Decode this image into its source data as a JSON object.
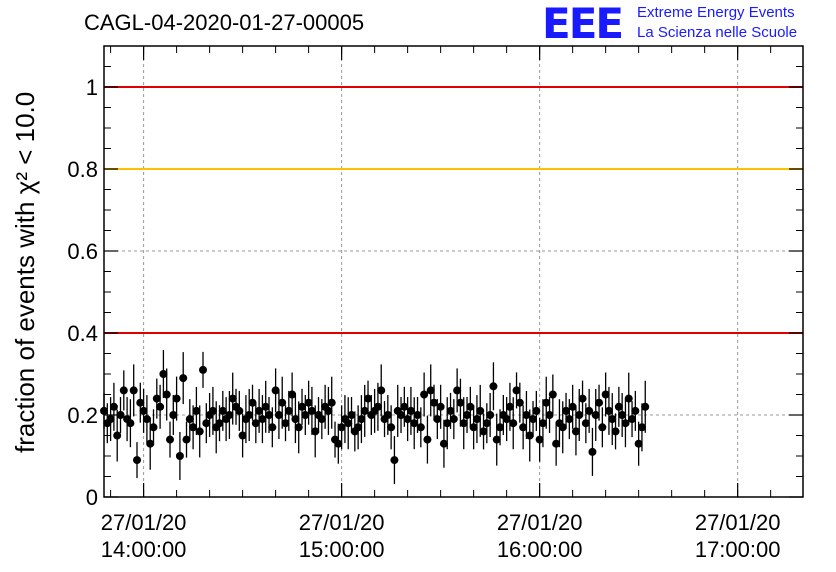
{
  "title": "CAGL-04-2020-01-27-00005",
  "logo": {
    "text": "EEE",
    "line1": "Extreme Energy Events",
    "line2": "La Scienza nelle Scuole",
    "color": "#1a1aff"
  },
  "chart_data": {
    "type": "scatter",
    "title": "CAGL-04-2020-01-27-00005",
    "ylabel": "fraction of events with",
    "ylabel_math": "χ² < 10.0",
    "xlabel": "",
    "ylim": [
      0,
      1.1
    ],
    "xlim_hours": [
      13.8,
      17.33
    ],
    "y_ticks": [
      {
        "value": 0,
        "label": "0"
      },
      {
        "value": 0.2,
        "label": "0.2"
      },
      {
        "value": 0.4,
        "label": "0.4"
      },
      {
        "value": 0.6,
        "label": "0.6"
      },
      {
        "value": 0.8,
        "label": "0.8"
      },
      {
        "value": 1.0,
        "label": "1"
      }
    ],
    "x_ticks": [
      {
        "hour": 14,
        "date": "27/01/20",
        "time": "14:00:00"
      },
      {
        "hour": 15,
        "date": "27/01/20",
        "time": "15:00:00"
      },
      {
        "hour": 16,
        "date": "27/01/20",
        "time": "16:00:00"
      },
      {
        "hour": 17,
        "date": "27/01/20",
        "time": "17:00:00"
      }
    ],
    "grid": true,
    "reference_lines": [
      {
        "y": 1.0,
        "color": "#e00000"
      },
      {
        "y": 0.8,
        "color": "#ffc000"
      },
      {
        "y": 0.4,
        "color": "#e00000"
      }
    ],
    "series": [
      {
        "color": "#000000",
        "x_start_hour": 13.8,
        "x_step_minutes": 1,
        "values": [
          0.21,
          0.18,
          0.19,
          0.22,
          0.15,
          0.2,
          0.26,
          0.19,
          0.18,
          0.26,
          0.09,
          0.23,
          0.21,
          0.19,
          0.13,
          0.17,
          0.24,
          0.22,
          0.3,
          0.25,
          0.14,
          0.2,
          0.24,
          0.1,
          0.29,
          0.14,
          0.19,
          0.17,
          0.21,
          0.16,
          0.31,
          0.18,
          0.2,
          0.21,
          0.17,
          0.18,
          0.21,
          0.19,
          0.2,
          0.24,
          0.22,
          0.21,
          0.15,
          0.19,
          0.2,
          0.23,
          0.18,
          0.21,
          0.19,
          0.22,
          0.2,
          0.17,
          0.26,
          0.2,
          0.23,
          0.18,
          0.21,
          0.25,
          0.19,
          0.17,
          0.22,
          0.2,
          0.23,
          0.21,
          0.16,
          0.2,
          0.19,
          0.22,
          0.21,
          0.23,
          0.14,
          0.13,
          0.17,
          0.19,
          0.18,
          0.2,
          0.16,
          0.17,
          0.19,
          0.21,
          0.24,
          0.2,
          0.21,
          0.22,
          0.26,
          0.19,
          0.2,
          0.17,
          0.09,
          0.21,
          0.2,
          0.22,
          0.19,
          0.21,
          0.18,
          0.2,
          0.17,
          0.25,
          0.14,
          0.26,
          0.23,
          0.19,
          0.22,
          0.13,
          0.18,
          0.21,
          0.19,
          0.26,
          0.23,
          0.18,
          0.2,
          0.22,
          0.17,
          0.19,
          0.21,
          0.16,
          0.18,
          0.2,
          0.27,
          0.14,
          0.17,
          0.2,
          0.19,
          0.22,
          0.18,
          0.26,
          0.23,
          0.17,
          0.2,
          0.15,
          0.19,
          0.21,
          0.14,
          0.18,
          0.23,
          0.2,
          0.25,
          0.13,
          0.18,
          0.17,
          0.21,
          0.19,
          0.22,
          0.16,
          0.2,
          0.24,
          0.18,
          0.21,
          0.11,
          0.2,
          0.23,
          0.17,
          0.25,
          0.21,
          0.19,
          0.16,
          0.22,
          0.2,
          0.18,
          0.24,
          0.19,
          0.21,
          0.13,
          0.17,
          0.22
        ]
      }
    ]
  }
}
